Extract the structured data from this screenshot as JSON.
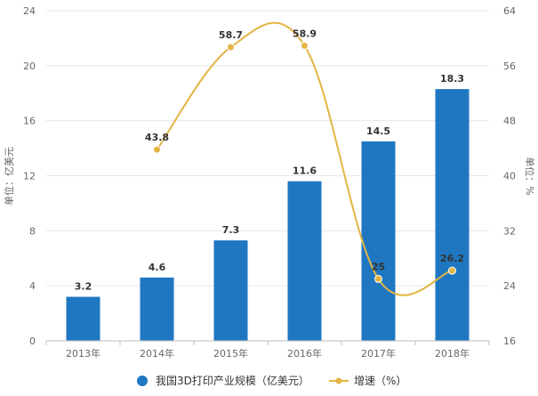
{
  "chart_data": {
    "type": "bar",
    "categories": [
      "2013年",
      "2014年",
      "2015年",
      "2016年",
      "2017年",
      "2018年"
    ],
    "series": [
      {
        "name": "我国3D打印产业规模（亿美元）",
        "type": "bar",
        "axis": "left",
        "values": [
          3.2,
          4.6,
          7.3,
          11.6,
          14.5,
          18.3
        ],
        "labels": [
          "3.2",
          "4.6",
          "7.3",
          "11.6",
          "14.5",
          "18.3"
        ],
        "color": "#1f77c2"
      },
      {
        "name": "增速（%）",
        "type": "line",
        "axis": "right",
        "values": [
          null,
          43.8,
          58.7,
          58.9,
          25,
          26.2
        ],
        "labels": [
          "",
          "43.8",
          "58.7",
          "58.9",
          "25",
          "26.2"
        ],
        "color": "#e3b543"
      }
    ],
    "ylabel": "单位：亿美元",
    "y2label": "单位：%",
    "ylim": [
      0,
      24
    ],
    "yticks": [
      "0",
      "4",
      "8",
      "12",
      "16",
      "20",
      "24"
    ],
    "y2lim": [
      16,
      64
    ],
    "y2ticks": [
      "16",
      "24",
      "32",
      "40",
      "48",
      "56",
      "64"
    ],
    "grid": true,
    "legend_position": "bottom"
  }
}
